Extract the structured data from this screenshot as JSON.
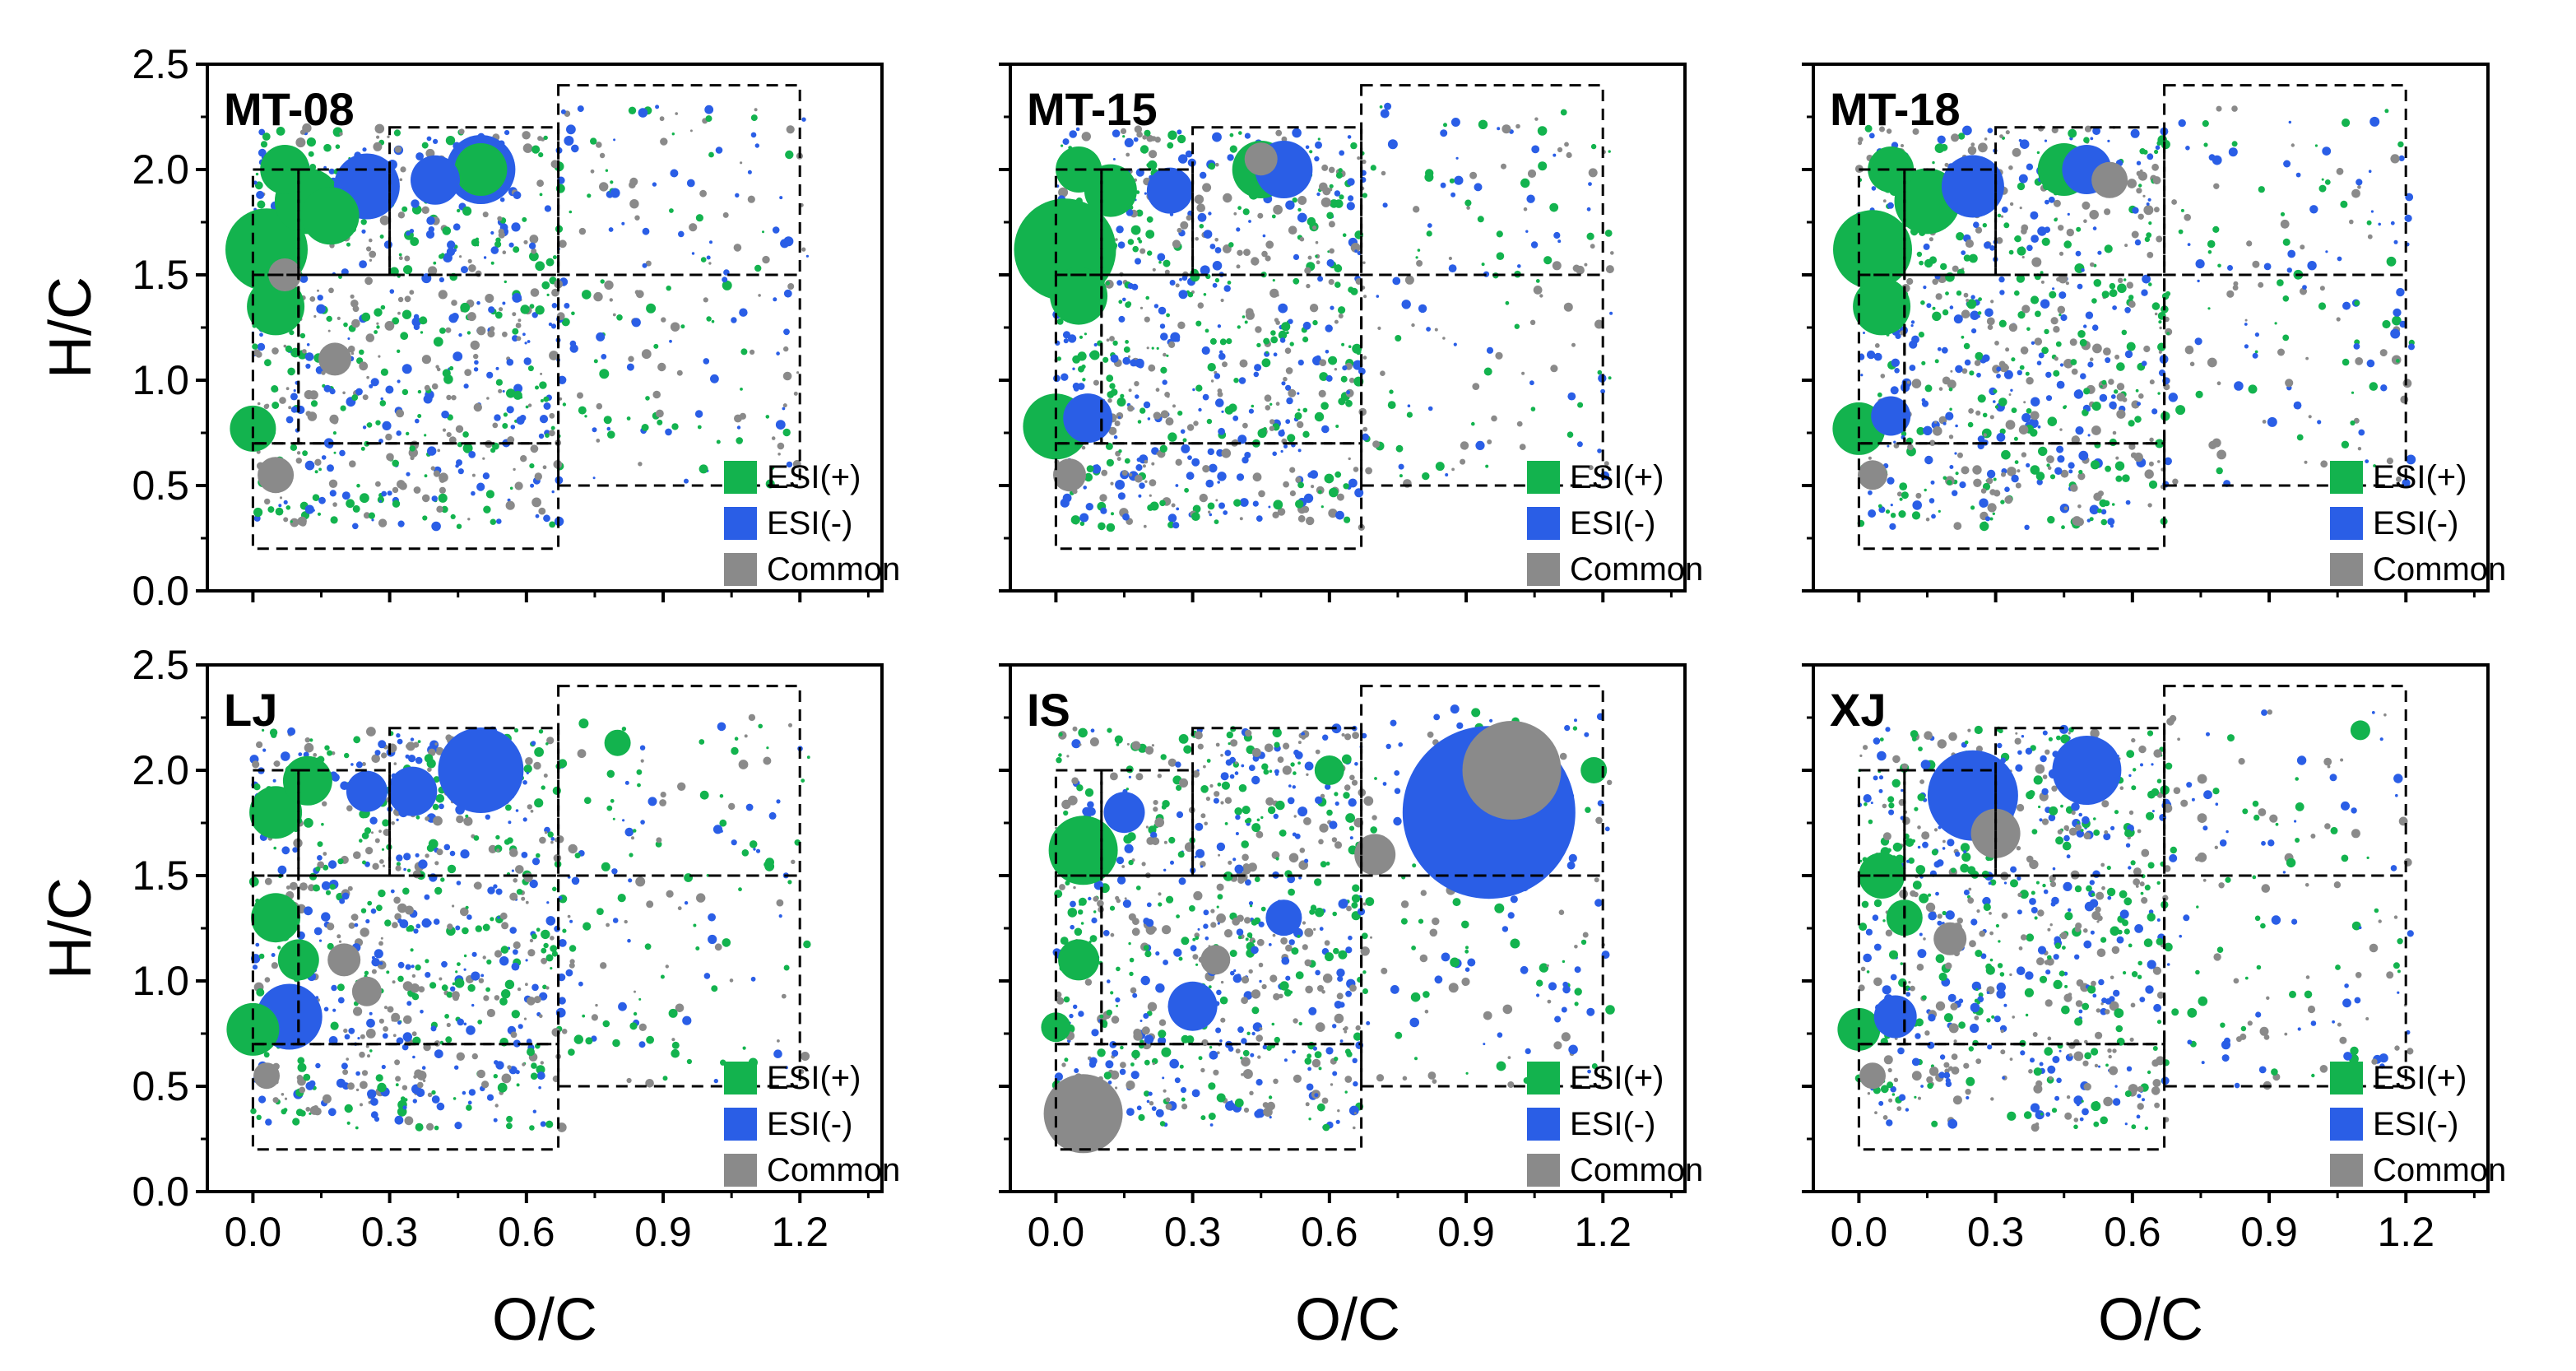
{
  "figure": {
    "colors": {
      "esi_pos": "#13b34e",
      "esi_neg": "#2a5ee6",
      "common": "#8a8a8a",
      "axis": "#000000"
    }
  },
  "chart_data": [
    {
      "type": "scatter",
      "panel": "MT-08",
      "xlabel": "",
      "ylabel": "H/C",
      "xlim": [
        -0.1,
        1.38
      ],
      "ylim": [
        0,
        2.5
      ],
      "xticks": [],
      "yticks": [
        "0.0",
        "0.5",
        "1.0",
        "1.5",
        "2.0",
        "2.5"
      ],
      "legend": [
        "ESI(+)",
        "ESI(-)",
        "Common"
      ],
      "legend_position": "lower-right",
      "regions": [
        [
          0,
          0.1,
          1.5,
          2.0
        ],
        [
          0,
          0.1,
          0.7,
          1.5
        ],
        [
          0.1,
          0.67,
          0.7,
          1.5
        ],
        [
          0,
          0.67,
          0.2,
          0.7
        ],
        [
          0.1,
          0.3,
          1.5,
          2.0
        ],
        [
          0.3,
          0.67,
          1.5,
          2.2
        ],
        [
          0.67,
          1.2,
          0.5,
          1.5
        ],
        [
          0.67,
          1.2,
          1.5,
          2.4
        ]
      ],
      "series": [
        {
          "name": "ESI(+)",
          "points": [
            [
              0.07,
              2.0,
              30
            ],
            [
              0.03,
              1.62,
              50
            ],
            [
              0.0,
              0.77,
              28
            ],
            [
              0.12,
              1.85,
              40
            ],
            [
              0.17,
              1.78,
              35
            ],
            [
              0.5,
              2.0,
              32
            ],
            [
              0.05,
              1.35,
              35
            ]
          ]
        },
        {
          "name": "ESI(-)",
          "points": [
            [
              0.25,
              1.92,
              40
            ],
            [
              0.5,
              2.0,
              42
            ],
            [
              0.4,
              1.95,
              30
            ]
          ]
        },
        {
          "name": "Common",
          "points": [
            [
              0.05,
              0.55,
              22
            ],
            [
              0.07,
              1.5,
              20
            ],
            [
              0.18,
              1.1,
              20
            ]
          ]
        }
      ]
    },
    {
      "type": "scatter",
      "panel": "MT-15",
      "xlabel": "",
      "ylabel": "",
      "xlim": [
        -0.1,
        1.38
      ],
      "ylim": [
        0,
        2.5
      ],
      "xticks": [],
      "yticks": [],
      "legend": [
        "ESI(+)",
        "ESI(-)",
        "Common"
      ],
      "legend_position": "lower-right",
      "regions": [
        [
          0,
          0.1,
          1.5,
          2.0
        ],
        [
          0,
          0.1,
          0.7,
          1.5
        ],
        [
          0.1,
          0.67,
          0.7,
          1.5
        ],
        [
          0,
          0.67,
          0.2,
          0.7
        ],
        [
          0.1,
          0.3,
          1.5,
          2.0
        ],
        [
          0.3,
          0.67,
          1.5,
          2.2
        ],
        [
          0.67,
          1.2,
          0.5,
          1.5
        ],
        [
          0.67,
          1.2,
          1.5,
          2.4
        ]
      ],
      "series": [
        {
          "name": "ESI(+)",
          "points": [
            [
              0.05,
              2.0,
              28
            ],
            [
              0.02,
              1.62,
              62
            ],
            [
              0.0,
              0.78,
              40
            ],
            [
              0.45,
              2.0,
              35
            ],
            [
              0.12,
              1.9,
              32
            ],
            [
              0.05,
              1.4,
              35
            ]
          ]
        },
        {
          "name": "ESI(-)",
          "points": [
            [
              0.07,
              0.82,
              30
            ],
            [
              0.5,
              2.0,
              35
            ],
            [
              0.25,
              1.9,
              28
            ]
          ]
        },
        {
          "name": "Common",
          "points": [
            [
              0.03,
              0.55,
              20
            ],
            [
              0.45,
              2.05,
              20
            ]
          ]
        }
      ]
    },
    {
      "type": "scatter",
      "panel": "MT-18",
      "xlabel": "",
      "ylabel": "",
      "xlim": [
        -0.1,
        1.38
      ],
      "ylim": [
        0,
        2.5
      ],
      "xticks": [],
      "yticks": [],
      "legend": [
        "ESI(+)",
        "ESI(-)",
        "Common"
      ],
      "legend_position": "lower-right",
      "regions": [
        [
          0,
          0.1,
          1.5,
          2.0
        ],
        [
          0,
          0.1,
          0.7,
          1.5
        ],
        [
          0.1,
          0.67,
          0.7,
          1.5
        ],
        [
          0,
          0.67,
          0.2,
          0.7
        ],
        [
          0.1,
          0.3,
          1.5,
          2.0
        ],
        [
          0.3,
          0.67,
          1.5,
          2.2
        ],
        [
          0.67,
          1.2,
          0.5,
          1.5
        ],
        [
          0.67,
          1.2,
          1.5,
          2.4
        ]
      ],
      "series": [
        {
          "name": "ESI(+)",
          "points": [
            [
              0.07,
              2.0,
              28
            ],
            [
              0.03,
              1.62,
              48
            ],
            [
              0.0,
              0.77,
              32
            ],
            [
              0.45,
              2.0,
              32
            ],
            [
              0.15,
              1.85,
              40
            ],
            [
              0.05,
              1.35,
              35
            ]
          ]
        },
        {
          "name": "ESI(-)",
          "points": [
            [
              0.07,
              0.83,
              24
            ],
            [
              0.25,
              1.92,
              38
            ],
            [
              0.5,
              2.0,
              30
            ]
          ]
        },
        {
          "name": "Common",
          "points": [
            [
              0.03,
              0.55,
              18
            ],
            [
              0.55,
              1.95,
              22
            ]
          ]
        }
      ]
    },
    {
      "type": "scatter",
      "panel": "LJ",
      "xlabel": "O/C",
      "ylabel": "H/C",
      "xlim": [
        -0.1,
        1.38
      ],
      "ylim": [
        0,
        2.5
      ],
      "xticks": [
        "0.0",
        "0.3",
        "0.6",
        "0.9",
        "1.2"
      ],
      "yticks": [
        "0.0",
        "0.5",
        "1.0",
        "1.5",
        "2.0",
        "2.5"
      ],
      "legend": [
        "ESI(+)",
        "ESI(-)",
        "Common"
      ],
      "legend_position": "lower-right",
      "regions": [
        [
          0,
          0.1,
          1.5,
          2.0
        ],
        [
          0,
          0.1,
          0.7,
          1.5
        ],
        [
          0.1,
          0.67,
          0.7,
          1.5
        ],
        [
          0,
          0.67,
          0.2,
          0.7
        ],
        [
          0.1,
          0.3,
          1.5,
          2.0
        ],
        [
          0.3,
          0.67,
          1.5,
          2.2
        ],
        [
          0.67,
          1.2,
          0.5,
          1.5
        ],
        [
          0.67,
          1.2,
          1.5,
          2.4
        ]
      ],
      "series": [
        {
          "name": "ESI(+)",
          "points": [
            [
              0.0,
              0.77,
              32
            ],
            [
              0.05,
              1.8,
              32
            ],
            [
              0.12,
              1.95,
              30
            ],
            [
              0.8,
              2.13,
              16
            ],
            [
              0.05,
              1.3,
              30
            ],
            [
              0.1,
              1.1,
              25
            ]
          ]
        },
        {
          "name": "ESI(-)",
          "points": [
            [
              0.08,
              0.83,
              40
            ],
            [
              0.5,
              2.0,
              52
            ],
            [
              0.35,
              1.9,
              30
            ],
            [
              0.25,
              1.9,
              25
            ]
          ]
        },
        {
          "name": "Common",
          "points": [
            [
              0.03,
              0.55,
              16
            ],
            [
              0.2,
              1.1,
              20
            ],
            [
              0.25,
              0.95,
              18
            ]
          ]
        }
      ]
    },
    {
      "type": "scatter",
      "panel": "IS",
      "xlabel": "O/C",
      "ylabel": "",
      "xlim": [
        -0.1,
        1.38
      ],
      "ylim": [
        0,
        2.5
      ],
      "xticks": [
        "0.0",
        "0.3",
        "0.6",
        "0.9",
        "1.2"
      ],
      "yticks": [],
      "legend": [
        "ESI(+)",
        "ESI(-)",
        "Common"
      ],
      "legend_position": "lower-right",
      "regions": [
        [
          0,
          0.1,
          1.5,
          2.0
        ],
        [
          0,
          0.1,
          0.7,
          1.5
        ],
        [
          0.1,
          0.67,
          0.7,
          1.5
        ],
        [
          0,
          0.67,
          0.2,
          0.7
        ],
        [
          0.1,
          0.3,
          1.5,
          2.0
        ],
        [
          0.3,
          0.67,
          1.5,
          2.2
        ],
        [
          0.67,
          1.2,
          0.5,
          1.5
        ],
        [
          0.67,
          1.2,
          1.5,
          2.4
        ]
      ],
      "series": [
        {
          "name": "ESI(+)",
          "points": [
            [
              0.06,
              1.62,
              42
            ],
            [
              0.0,
              0.78,
              18
            ],
            [
              0.05,
              1.1,
              25
            ],
            [
              1.18,
              2.0,
              16
            ],
            [
              0.6,
              2.0,
              18
            ]
          ]
        },
        {
          "name": "ESI(-)",
          "points": [
            [
              0.95,
              1.8,
              105
            ],
            [
              0.3,
              0.88,
              30
            ],
            [
              0.15,
              1.8,
              25
            ],
            [
              0.5,
              1.3,
              22
            ]
          ]
        },
        {
          "name": "Common",
          "points": [
            [
              0.06,
              0.37,
              48
            ],
            [
              1.0,
              2.0,
              60
            ],
            [
              0.7,
              1.6,
              25
            ],
            [
              0.35,
              1.1,
              18
            ]
          ]
        }
      ]
    },
    {
      "type": "scatter",
      "panel": "XJ",
      "xlabel": "O/C",
      "ylabel": "",
      "xlim": [
        -0.1,
        1.38
      ],
      "ylim": [
        0,
        2.5
      ],
      "xticks": [
        "0.0",
        "0.3",
        "0.6",
        "0.9",
        "1.2"
      ],
      "yticks": [],
      "legend": [
        "ESI(+)",
        "ESI(-)",
        "Common"
      ],
      "legend_position": "lower-right",
      "regions": [
        [
          0,
          0.1,
          1.5,
          2.0
        ],
        [
          0,
          0.1,
          0.7,
          1.5
        ],
        [
          0.1,
          0.67,
          0.7,
          1.5
        ],
        [
          0,
          0.67,
          0.2,
          0.7
        ],
        [
          0.1,
          0.3,
          1.5,
          2.0
        ],
        [
          0.3,
          0.67,
          1.5,
          2.2
        ],
        [
          0.67,
          1.2,
          0.5,
          1.5
        ],
        [
          0.67,
          1.2,
          1.5,
          2.4
        ]
      ],
      "series": [
        {
          "name": "ESI(+)",
          "points": [
            [
              0.0,
              0.77,
              26
            ],
            [
              1.1,
              2.19,
              12
            ],
            [
              0.05,
              1.5,
              28
            ],
            [
              0.1,
              1.3,
              22
            ]
          ]
        },
        {
          "name": "ESI(-)",
          "points": [
            [
              0.25,
              1.88,
              55
            ],
            [
              0.5,
              2.0,
              42
            ],
            [
              0.08,
              0.83,
              26
            ]
          ]
        },
        {
          "name": "Common",
          "points": [
            [
              0.03,
              0.55,
              16
            ],
            [
              0.3,
              1.7,
              30
            ],
            [
              0.2,
              1.2,
              20
            ]
          ]
        }
      ]
    }
  ]
}
